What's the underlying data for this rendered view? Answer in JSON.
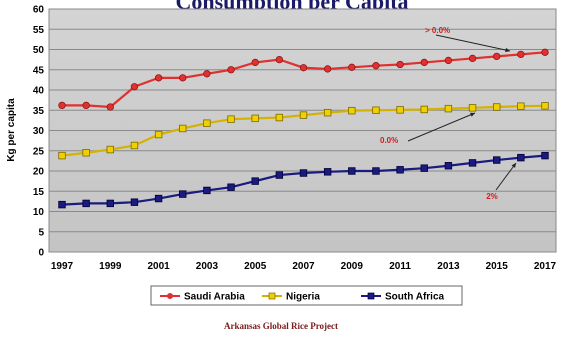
{
  "chart_data": {
    "type": "line",
    "title": "Consumption per Capita",
    "ylabel": "Kg per capita",
    "xlabel": "",
    "x": [
      1997,
      1998,
      1999,
      2000,
      2001,
      2002,
      2003,
      2004,
      2005,
      2006,
      2007,
      2008,
      2009,
      2010,
      2011,
      2012,
      2013,
      2014,
      2015,
      2016,
      2017
    ],
    "x_ticks": [
      "1997",
      "1999",
      "2001",
      "2003",
      "2005",
      "2007",
      "2009",
      "2011",
      "2013",
      "2015",
      "2017"
    ],
    "y_ticks": [
      "0",
      "5",
      "10",
      "15",
      "20",
      "25",
      "30",
      "35",
      "40",
      "45",
      "50",
      "55",
      "60"
    ],
    "ylim": [
      0,
      60
    ],
    "grid": true,
    "legend_position": "bottom",
    "series": [
      {
        "name": "Saudi Arabia",
        "color": "#e03030",
        "marker": "circle",
        "values": [
          36.2,
          36.2,
          35.8,
          40.8,
          43.0,
          43.0,
          44.0,
          45.0,
          46.8,
          47.5,
          45.5,
          45.2,
          45.6,
          46.0,
          46.3,
          46.8,
          47.3,
          47.8,
          48.3,
          48.8,
          49.3
        ]
      },
      {
        "name": "Nigeria",
        "color": "#f0d000",
        "marker": "square",
        "values": [
          23.8,
          24.5,
          25.3,
          26.3,
          29.0,
          30.5,
          31.8,
          32.8,
          33.0,
          33.2,
          33.8,
          34.4,
          34.9,
          35.0,
          35.1,
          35.2,
          35.4,
          35.6,
          35.8,
          36.0,
          36.1
        ]
      },
      {
        "name": "South Africa",
        "color": "#1a1a80",
        "marker": "square",
        "values": [
          11.7,
          12.0,
          12.0,
          12.3,
          13.2,
          14.3,
          15.2,
          16.0,
          17.5,
          19.0,
          19.5,
          19.8,
          20.0,
          20.0,
          20.3,
          20.7,
          21.3,
          22.0,
          22.7,
          23.3,
          23.8
        ]
      }
    ],
    "annotations": [
      {
        "text": "> 0.0%",
        "color": "#cc2020",
        "series": "Saudi Arabia"
      },
      {
        "text": "0.0%",
        "color": "#cc2020",
        "series": "Nigeria"
      },
      {
        "text": "2%",
        "color": "#cc2020",
        "series": "South Africa"
      }
    ]
  },
  "source": "Arkansas Global Rice Project"
}
